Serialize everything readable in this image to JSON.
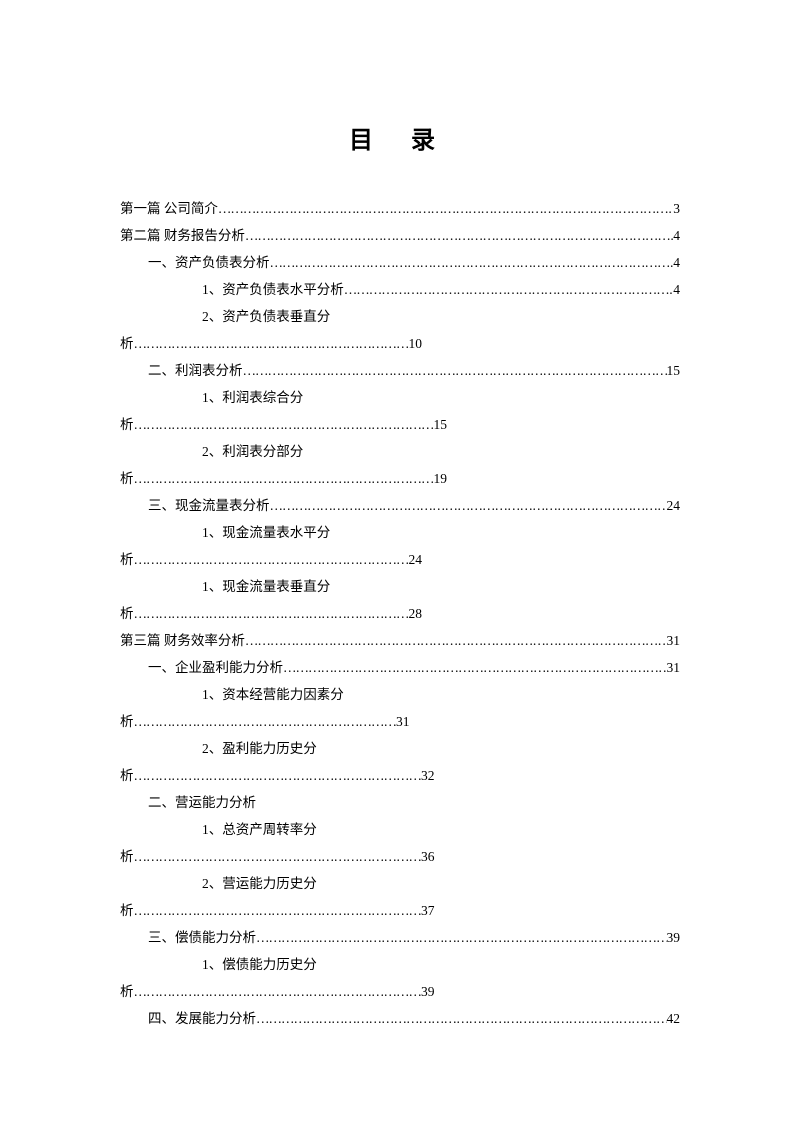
{
  "title": "目  录",
  "entries": [
    {
      "type": "line",
      "indent": 0,
      "label": "第一篇 公司简介",
      "page": "3"
    },
    {
      "type": "line",
      "indent": 0,
      "label": "第二篇 财务报告分析",
      "page": "4"
    },
    {
      "type": "line",
      "indent": 1,
      "label": "一、资产负债表分析",
      "page": "4"
    },
    {
      "type": "line",
      "indent": 2,
      "label": "1、资产负债表水平分析",
      "page": "4"
    },
    {
      "type": "wrap",
      "indent": 2,
      "label1": "2、资产负债表垂直分",
      "label2": "析",
      "dotsText": "…………………………………………………………",
      "page": "10"
    },
    {
      "type": "line",
      "indent": 1,
      "label": "二、利润表分析",
      "page": "15"
    },
    {
      "type": "wrap",
      "indent": 2,
      "label1": "1、利润表综合分",
      "label2": "析",
      "dotsText": "………………………………………………………………",
      "page": "15"
    },
    {
      "type": "wrap",
      "indent": 2,
      "label1": "2、利润表分部分",
      "label2": "析",
      "dotsText": "………………………………………………………………",
      "page": "19"
    },
    {
      "type": "line",
      "indent": 1,
      "label": "三、现金流量表分析",
      "page": "24"
    },
    {
      "type": "wrap",
      "indent": 2,
      "label1": "1、现金流量表水平分",
      "label2": "析",
      "dotsText": "…………………………………………………………",
      "page": "24"
    },
    {
      "type": "wrap",
      "indent": 2,
      "label1": "1、现金流量表垂直分",
      "label2": "析",
      "dotsText": "…………………………………………………………",
      "page": "28"
    },
    {
      "type": "line",
      "indent": 0,
      "label": "第三篇 财务效率分析",
      "page": "31"
    },
    {
      "type": "line",
      "indent": 1,
      "label": "一、企业盈利能力分析",
      "page": "31"
    },
    {
      "type": "wrap",
      "indent": 2,
      "label1": "1、资本经营能力因素分",
      "label2": "析",
      "dotsText": "………………………………………………………",
      "page": "31"
    },
    {
      "type": "wrap",
      "indent": 2,
      "label1": "2、盈利能力历史分",
      "label2": "析",
      "dotsText": "……………………………………………………………",
      "page": "32"
    },
    {
      "type": "nolead",
      "indent": 1,
      "label": "二、营运能力分析"
    },
    {
      "type": "wrap",
      "indent": 2,
      "label1": "1、总资产周转率分",
      "label2": "析",
      "dotsText": "……………………………………………………………",
      "page": "36"
    },
    {
      "type": "wrap",
      "indent": 2,
      "label1": "2、营运能力历史分",
      "label2": "析",
      "dotsText": "……………………………………………………………",
      "page": "37"
    },
    {
      "type": "line",
      "indent": 1,
      "label": "三、偿债能力分析",
      "page": "39"
    },
    {
      "type": "wrap",
      "indent": 2,
      "label1": "1、偿债能力历史分",
      "label2": "析",
      "dotsText": "……………………………………………………………",
      "page": "39"
    },
    {
      "type": "line",
      "indent": 1,
      "label": "四、发展能力分析",
      "page": "42"
    }
  ],
  "colors": {
    "background": "#ffffff",
    "text": "#000000"
  },
  "typography": {
    "title_fontsize": 24,
    "body_fontsize": 13.5,
    "font_family": "SimSun"
  }
}
